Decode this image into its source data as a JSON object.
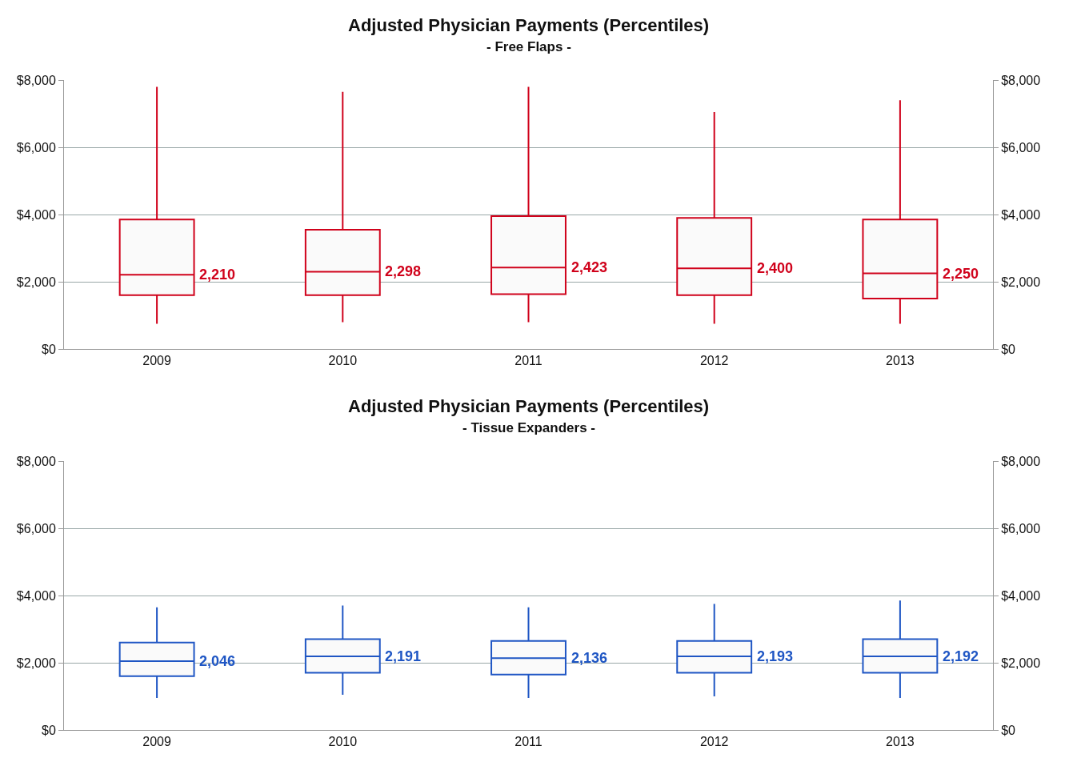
{
  "chart_data": [
    {
      "type": "box",
      "title": "Adjusted Physician Payments (Percentiles)",
      "subtitle": "- Free Flaps -",
      "categories": [
        "2009",
        "2010",
        "2011",
        "2012",
        "2013"
      ],
      "color": "#d0021b",
      "grid": "y",
      "boxes": [
        {
          "low": 750,
          "q1": 1600,
          "median": 2210,
          "q3": 3850,
          "high": 7800
        },
        {
          "low": 800,
          "q1": 1600,
          "median": 2298,
          "q3": 3550,
          "high": 7650
        },
        {
          "low": 800,
          "q1": 1630,
          "median": 2423,
          "q3": 3950,
          "high": 7800
        },
        {
          "low": 750,
          "q1": 1600,
          "median": 2400,
          "q3": 3900,
          "high": 7050
        },
        {
          "low": 750,
          "q1": 1500,
          "median": 2250,
          "q3": 3850,
          "high": 7400
        }
      ],
      "annotations": [
        "2,210",
        "2,298",
        "2,423",
        "2,400",
        "2,250"
      ],
      "ylim": [
        0,
        8000
      ],
      "yticks": [
        {
          "value": 0,
          "label": "$0"
        },
        {
          "value": 2000,
          "label": "$2,000"
        },
        {
          "value": 4000,
          "label": "$4,000"
        },
        {
          "value": 6000,
          "label": "$6,000"
        },
        {
          "value": 8000,
          "label": "$8,000"
        }
      ],
      "y2lim": [
        0,
        8000
      ],
      "y2ticks": [
        {
          "value": 0,
          "label": "$0"
        },
        {
          "value": 2000,
          "label": "$2,000"
        },
        {
          "value": 4000,
          "label": "$4,000"
        },
        {
          "value": 6000,
          "label": "$6,000"
        },
        {
          "value": 8000,
          "label": "$8,000"
        }
      ]
    },
    {
      "type": "box",
      "title": "Adjusted Physician Payments (Percentiles)",
      "subtitle": "- Tissue Expanders -",
      "categories": [
        "2009",
        "2010",
        "2011",
        "2012",
        "2013"
      ],
      "color": "#1f56c4",
      "grid": "y",
      "boxes": [
        {
          "low": 950,
          "q1": 1600,
          "median": 2046,
          "q3": 2600,
          "high": 3650
        },
        {
          "low": 1050,
          "q1": 1700,
          "median": 2191,
          "q3": 2700,
          "high": 3700
        },
        {
          "low": 950,
          "q1": 1650,
          "median": 2136,
          "q3": 2650,
          "high": 3650
        },
        {
          "low": 1000,
          "q1": 1700,
          "median": 2193,
          "q3": 2650,
          "high": 3750
        },
        {
          "low": 950,
          "q1": 1700,
          "median": 2192,
          "q3": 2700,
          "high": 3850
        }
      ],
      "annotations": [
        "2,046",
        "2,191",
        "2,136",
        "2,193",
        "2,192"
      ],
      "ylim": [
        0,
        8000
      ],
      "yticks": [
        {
          "value": 0,
          "label": "$0"
        },
        {
          "value": 2000,
          "label": "$2,000"
        },
        {
          "value": 4000,
          "label": "$4,000"
        },
        {
          "value": 6000,
          "label": "$6,000"
        },
        {
          "value": 8000,
          "label": "$8,000"
        }
      ],
      "y2lim": [
        0,
        8000
      ],
      "y2ticks": [
        {
          "value": 0,
          "label": "$0"
        },
        {
          "value": 2000,
          "label": "$2,000"
        },
        {
          "value": 4000,
          "label": "$4,000"
        },
        {
          "value": 6000,
          "label": "$6,000"
        },
        {
          "value": 8000,
          "label": "$8,000"
        }
      ]
    }
  ]
}
